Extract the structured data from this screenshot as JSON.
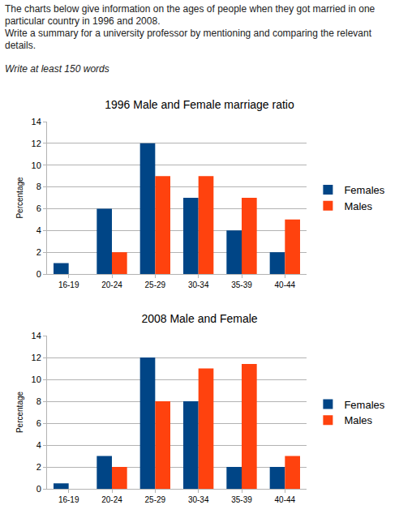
{
  "text": {
    "paragraphs": [
      "The charts below give information on the ages of people when they got married in one particular country in 1996 and 2008.",
      "Write a summary for a university professor by mentioning and comparing the relevant details."
    ],
    "note": "Write at least 150 words"
  },
  "chart_data": [
    {
      "type": "bar",
      "title": "1996 Male and Female marriage ratio",
      "ylabel": "Percentage",
      "categories": [
        "16-19",
        "20-24",
        "25-29",
        "30-34",
        "35-39",
        "40-44"
      ],
      "series": [
        {
          "name": "Females",
          "color": "#004586",
          "values": [
            1,
            6,
            12,
            7,
            4,
            2
          ]
        },
        {
          "name": "Males",
          "color": "#ff420e",
          "values": [
            0,
            2,
            9,
            9,
            7,
            5
          ]
        }
      ],
      "ylim": [
        0,
        14
      ],
      "yticks": [
        0,
        2,
        4,
        6,
        8,
        10,
        12,
        14
      ],
      "grid": true,
      "legend": "right"
    },
    {
      "type": "bar",
      "title": "2008 Male and Female",
      "ylabel": "Percentage",
      "categories": [
        "16-19",
        "20-24",
        "25-29",
        "30-34",
        "35-39",
        "40-44"
      ],
      "series": [
        {
          "name": "Females",
          "color": "#004586",
          "values": [
            0.5,
            3,
            12,
            8,
            2,
            2
          ]
        },
        {
          "name": "Males",
          "color": "#ff420e",
          "values": [
            0,
            2,
            8,
            11,
            11.4,
            3
          ]
        }
      ],
      "ylim": [
        0,
        14
      ],
      "yticks": [
        0,
        2,
        4,
        6,
        8,
        10,
        12,
        14
      ],
      "grid": true,
      "legend": "right"
    }
  ]
}
